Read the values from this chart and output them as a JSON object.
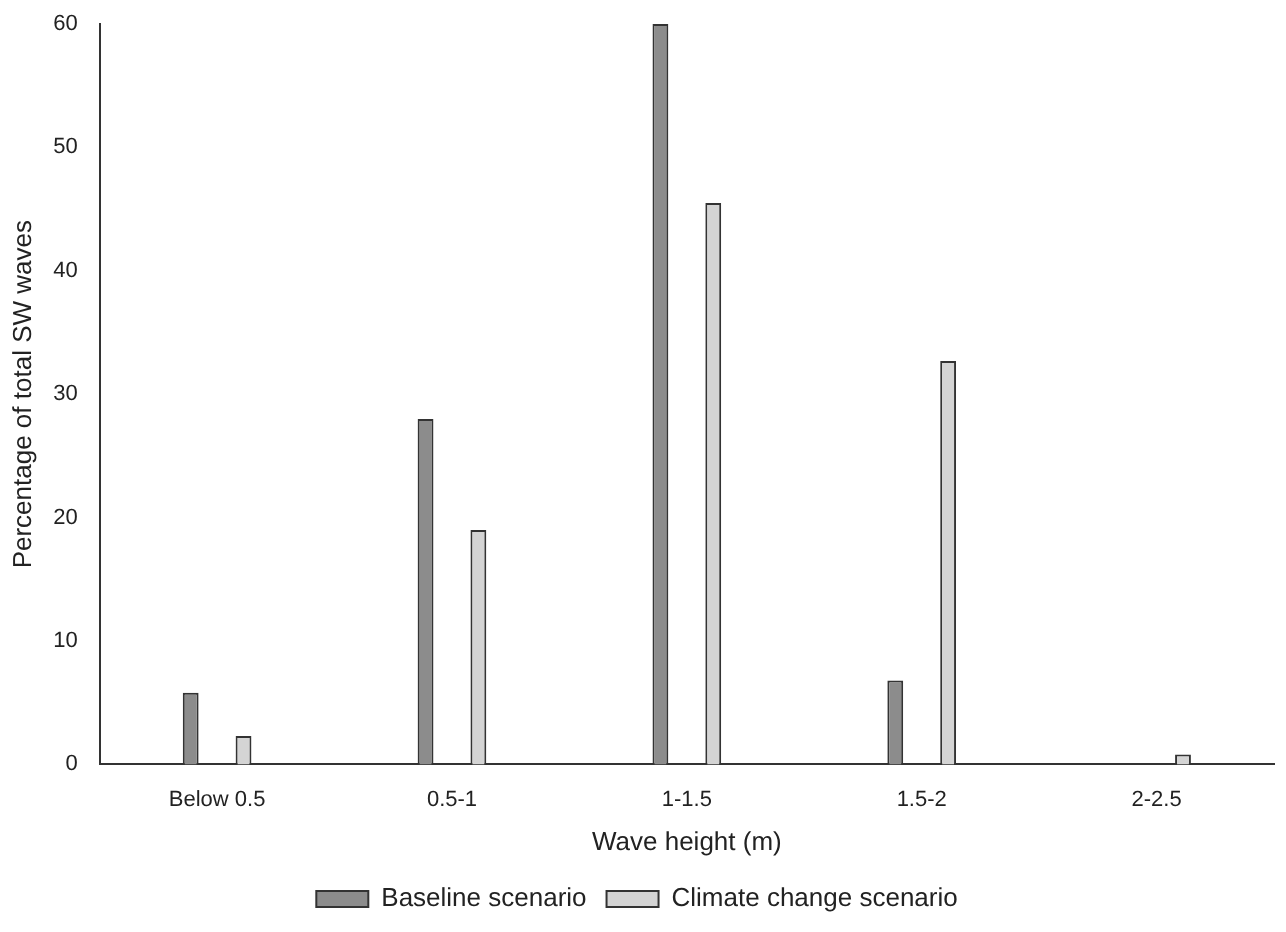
{
  "chart_data": {
    "type": "bar",
    "xlabel": "Wave height (m)",
    "ylabel": "Percentage of total SW waves",
    "categories": [
      "Below 0.5",
      "0.5-1",
      "1-1.5",
      "1.5-2",
      "2-2.5"
    ],
    "series": [
      {
        "name": "Baseline scenario",
        "color": "#8c8c8c",
        "values": [
          5.8,
          28,
          60,
          6.8,
          0
        ]
      },
      {
        "name": "Climate change scenario",
        "color": "#d4d4d4",
        "values": [
          2.3,
          19,
          45.5,
          32.7,
          0.8
        ]
      }
    ],
    "ylim": [
      0,
      60
    ],
    "yticks": [
      0,
      10,
      20,
      30,
      40,
      50,
      60
    ],
    "grid": false,
    "legend": "bottom"
  }
}
